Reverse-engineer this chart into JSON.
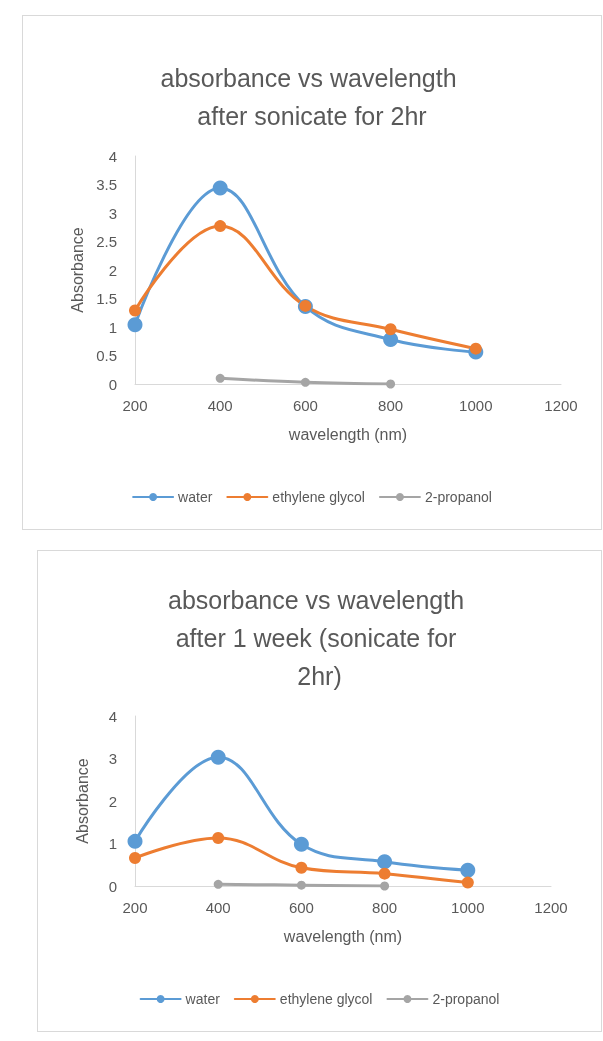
{
  "chart_data": [
    {
      "type": "line",
      "title": "absorbance vs wavelength after sonicate for 2hr",
      "xlabel": "wavelength (nm)",
      "ylabel": "Absorbance",
      "xlim": [
        200,
        1200
      ],
      "xticks": [
        200,
        400,
        600,
        800,
        1000,
        1200
      ],
      "ylim": [
        0,
        4
      ],
      "yticks": [
        0,
        0.5,
        1,
        1.5,
        2,
        2.5,
        3,
        3.5,
        4
      ],
      "legend": "bottom",
      "marker": "circle",
      "line_style": "solid",
      "series": [
        {
          "name": "water",
          "color": "#5b9bd5",
          "x": [
            200,
            400,
            600,
            800,
            1000
          ],
          "values": [
            1.04,
            3.44,
            1.36,
            0.78,
            0.56
          ]
        },
        {
          "name": "ethylene glycol",
          "color": "#ed7d31",
          "x": [
            200,
            400,
            600,
            800,
            1000
          ],
          "values": [
            1.29,
            2.77,
            1.37,
            0.96,
            0.62
          ]
        },
        {
          "name": "2-propanol",
          "color": "#a5a5a5",
          "x": [
            400,
            600,
            800
          ],
          "values": [
            0.1,
            0.03,
            0
          ]
        }
      ]
    },
    {
      "type": "line",
      "title": "absorbance vs wavelength after 1 week (sonicate for 2hr)",
      "xlabel": "wavelength (nm)",
      "ylabel": "Absorbance",
      "xlim": [
        200,
        1200
      ],
      "xticks": [
        200,
        400,
        600,
        800,
        1000,
        1200
      ],
      "ylim": [
        0,
        4
      ],
      "yticks": [
        0,
        1,
        2,
        3,
        4
      ],
      "legend": "bottom",
      "marker": "circle",
      "line_style": "solid",
      "series": [
        {
          "name": "water",
          "color": "#5b9bd5",
          "x": [
            200,
            400,
            600,
            800,
            1000
          ],
          "values": [
            1.05,
            3.03,
            0.98,
            0.57,
            0.37
          ]
        },
        {
          "name": "ethylene glycol",
          "color": "#ed7d31",
          "x": [
            200,
            400,
            600,
            800,
            1000
          ],
          "values": [
            0.66,
            1.13,
            0.43,
            0.29,
            0.08
          ]
        },
        {
          "name": "2-propanol",
          "color": "#a5a5a5",
          "x": [
            400,
            600,
            800
          ],
          "values": [
            0.04,
            0.02,
            0
          ]
        }
      ]
    }
  ]
}
